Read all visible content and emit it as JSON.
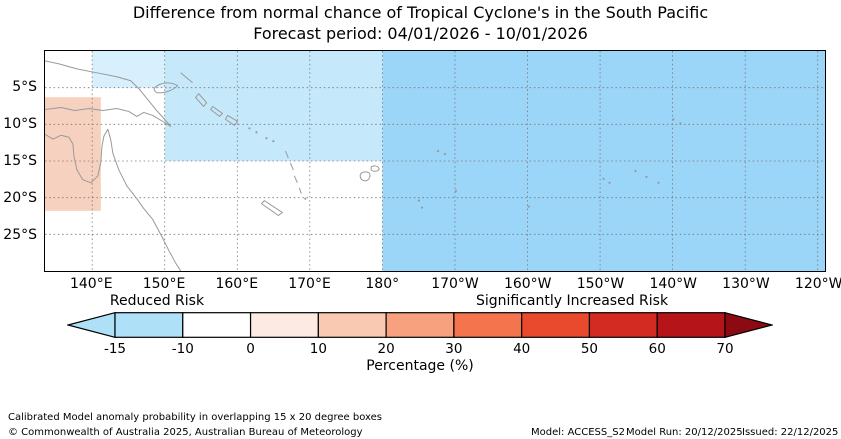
{
  "title": {
    "line1": "Difference from normal chance of Tropical Cyclone's in the South Pacific",
    "line2": "Forecast period: 04/01/2026 - 10/01/2026"
  },
  "map": {
    "lon_range": [
      133.5,
      241
    ],
    "lat_range": [
      0,
      30
    ],
    "grid_color": "#777777",
    "coast_color": "#999999",
    "lat_labels": [
      {
        "text": "5°S",
        "lat": 5
      },
      {
        "text": "10°S",
        "lat": 10
      },
      {
        "text": "15°S",
        "lat": 15
      },
      {
        "text": "20°S",
        "lat": 20
      },
      {
        "text": "25°S",
        "lat": 25
      }
    ],
    "lon_labels": [
      {
        "text": "140°E",
        "lon": 140
      },
      {
        "text": "150°E",
        "lon": 150
      },
      {
        "text": "160°E",
        "lon": 160
      },
      {
        "text": "170°E",
        "lon": 170
      },
      {
        "text": "180°",
        "lon": 180
      },
      {
        "text": "170°W",
        "lon": 190
      },
      {
        "text": "160°W",
        "lon": 200
      },
      {
        "text": "150°W",
        "lon": 210
      },
      {
        "text": "140°W",
        "lon": 220
      },
      {
        "text": "130°W",
        "lon": 230
      },
      {
        "text": "120°W",
        "lon": 240
      }
    ]
  },
  "colorbar": {
    "left_label": "Reduced Risk",
    "right_label": "Significantly Increased Risk",
    "axis_label": "Percentage (%)",
    "ticks": [
      "-15",
      "-10",
      "0",
      "10",
      "20",
      "30",
      "40",
      "50",
      "60",
      "70"
    ],
    "segment_colors": [
      "#aee0f8",
      "#ffffff",
      "#fdeae2",
      "#f9c9b2",
      "#f7a17f",
      "#f4744e",
      "#e94a2e",
      "#d32a21",
      "#b51419"
    ],
    "left_arrow_color": "#aee0f8",
    "right_arrow_color": "#8c0a11"
  },
  "footer": {
    "note": "Calibrated Model anomaly probability in overlapping 15 x 20 degree boxes",
    "copyright": "© Commonwealth of Australia 2025, Australian Bureau of Meteorology",
    "model": "Model: ACCESS_S2",
    "model_run": "Model Run: 20/12/2025",
    "issued": "Issued: 22/12/2025"
  },
  "chart_data": {
    "type": "heatmap",
    "title": "Difference from normal chance of Tropical Cyclone's in the South Pacific",
    "subtitle": "Forecast period: 04/01/2026 - 10/01/2026",
    "value_units": "Percentage (%) difference from normal",
    "lon_axis": {
      "tick_labels": [
        "140°E",
        "150°E",
        "160°E",
        "170°E",
        "180°",
        "170°W",
        "160°W",
        "150°W",
        "140°W",
        "130°W",
        "120°W"
      ]
    },
    "lat_axis": {
      "tick_labels": [
        "5°S",
        "10°S",
        "15°S",
        "20°S",
        "25°S"
      ]
    },
    "colorbar_ticks": [
      -15,
      -10,
      0,
      10,
      20,
      30,
      40,
      50,
      60,
      70
    ],
    "legend_position": "bottom",
    "grid": true,
    "regions": [
      {
        "id": "east-pacific",
        "description": "180° to 120°W, 0°S to 30°S",
        "value": "reduced risk, approx -15 to -10 %",
        "lon": [
          180,
          241
        ],
        "lat": [
          0,
          30
        ],
        "color": "#9bd5f7"
      },
      {
        "id": "coral-sea-north",
        "description": "150°E to 180°, 0°S to 15°S",
        "value": "reduced risk, approx -10 %",
        "lon": [
          150,
          180
        ],
        "lat": [
          0,
          15
        ],
        "color": "#c6e8fb"
      },
      {
        "id": "png-north",
        "description": "140°E to 150°E, 0°S to 5°S",
        "value": "slightly reduced risk",
        "lon": [
          140,
          150
        ],
        "lat": [
          0,
          5
        ],
        "color": "#d8effd"
      },
      {
        "id": "nw-australia",
        "description": "west of 141°E, 6°S to 22°S",
        "value": "increased risk, approx +10 %",
        "lon": [
          133.5,
          141.2
        ],
        "lat": [
          6.3,
          21.8
        ],
        "color": "#f6d1c0"
      }
    ]
  }
}
